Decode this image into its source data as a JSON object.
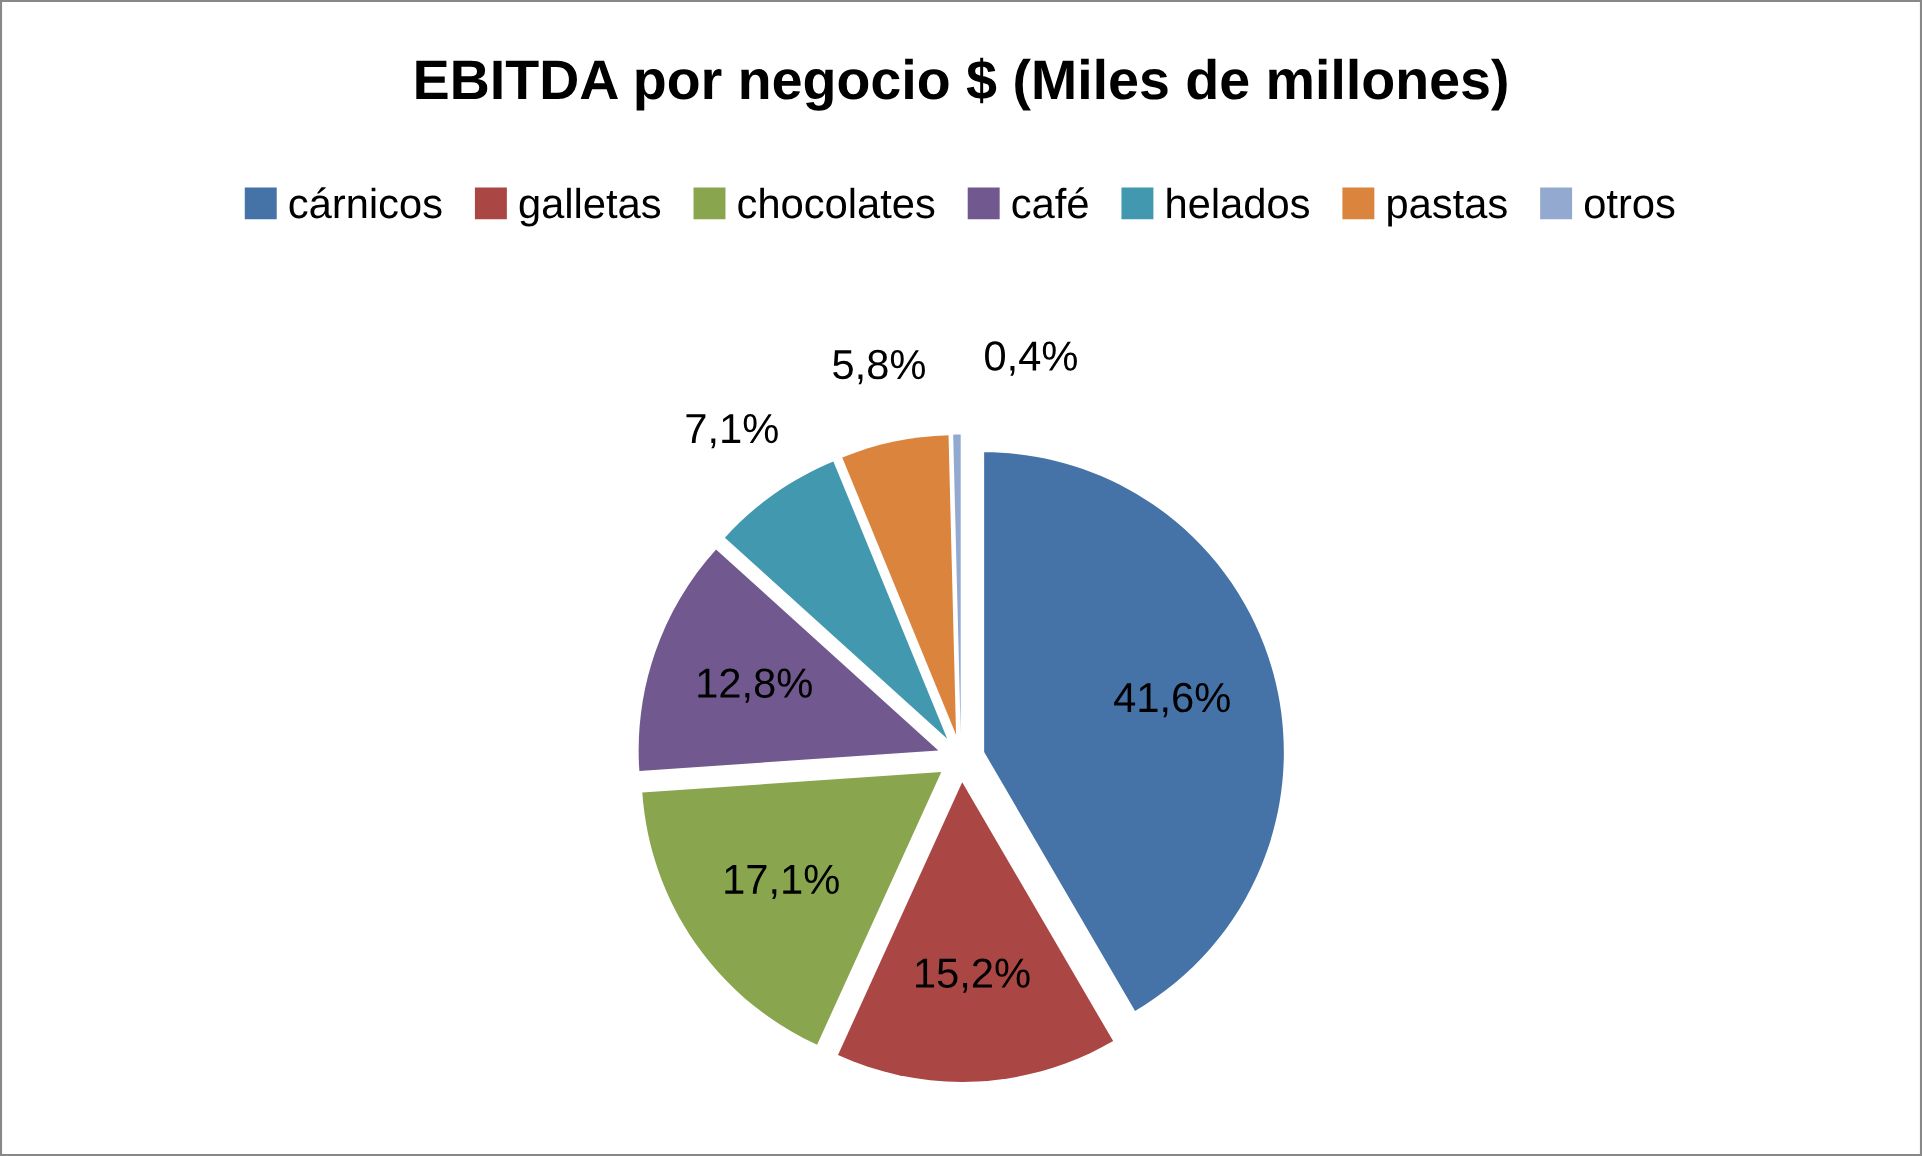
{
  "chart_data": {
    "type": "pie",
    "title": "EBITDA por negocio $ (Miles de millones)",
    "categories": [
      "cárnicos",
      "galletas",
      "chocolates",
      "café",
      "helados",
      "pastas",
      "otros"
    ],
    "values": [
      41.6,
      15.2,
      17.1,
      12.8,
      7.1,
      5.8,
      0.4
    ],
    "colors": [
      "#4572a7",
      "#aa4643",
      "#89a54e",
      "#71588f",
      "#4198af",
      "#db843d",
      "#93a9cf"
    ],
    "value_labels": [
      "41,6%",
      "15,2%",
      "17,1%",
      "12,8%",
      "7,1%",
      "5,8%",
      "0,4%"
    ],
    "legend": "top"
  }
}
